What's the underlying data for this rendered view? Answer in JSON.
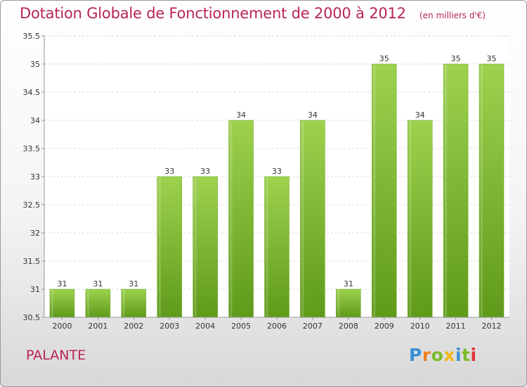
{
  "chart_data": {
    "type": "bar",
    "title": "Dotation Globale de Fonctionnement de 2000 à 2012",
    "subtitle": "(en milliers d'€)",
    "categories": [
      "2000",
      "2001",
      "2002",
      "2003",
      "2004",
      "2005",
      "2006",
      "2007",
      "2008",
      "2009",
      "2010",
      "2011",
      "2012"
    ],
    "values": [
      31,
      31,
      31,
      33,
      33,
      34,
      33,
      34,
      31,
      35,
      34,
      35,
      35
    ],
    "ylim": [
      30.5,
      35.5
    ],
    "yticks": [
      30.5,
      31,
      31.5,
      32,
      32.5,
      33,
      33.5,
      34,
      34.5,
      35,
      35.5
    ],
    "ytick_labels": [
      "30.5",
      "31",
      "31.5",
      "32",
      "32.5",
      "33",
      "33.5",
      "34",
      "34.5",
      "35",
      "35.5"
    ],
    "grid": true,
    "bar_color": "#7fb631"
  },
  "commune": "PALANTE",
  "brand": {
    "letters": [
      "P",
      "r",
      "o",
      "x",
      "i",
      "t",
      "i"
    ],
    "colors": [
      "#3a8fd6",
      "#f07f1f",
      "#7dba2d",
      "#f2b61a",
      "#3a8fd6",
      "#7dba2d",
      "#e0323a"
    ]
  }
}
